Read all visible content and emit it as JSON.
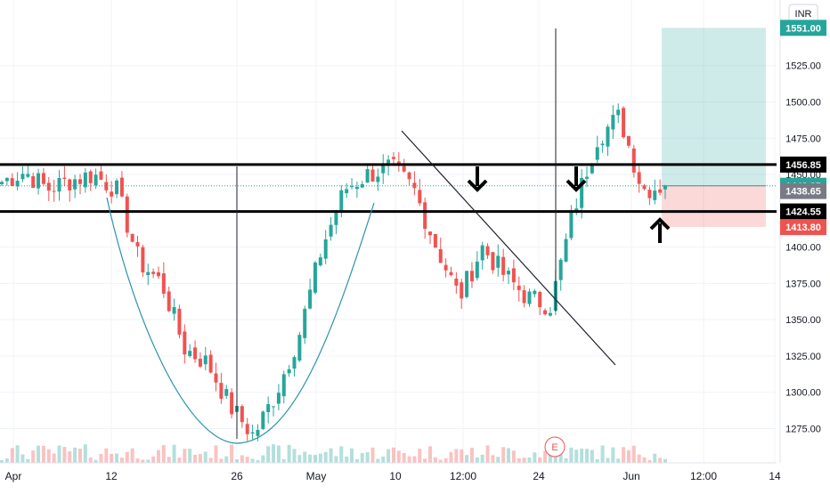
{
  "chart_data": {
    "type": "candlestick",
    "currency": "INR",
    "y_axis": {
      "side": "right",
      "ticks": [
        1275,
        1300,
        1325,
        1350,
        1375,
        1400,
        1425,
        1450,
        1475,
        1500,
        1525
      ],
      "tick_labels": [
        "1275.00",
        "1300.00",
        "1325.00",
        "1350.00",
        "1375.00",
        "1400.00",
        "1425.00",
        "1450.00",
        "1475.00",
        "1500.00",
        "1525.00"
      ],
      "range": [
        1250,
        1562
      ]
    },
    "x_axis": {
      "ticks": [
        "Apr",
        "12",
        "26",
        "May",
        "10",
        "12:00",
        "24",
        "Jun",
        "12:00",
        "14"
      ]
    },
    "price_labels": [
      {
        "value": 1551.0,
        "label": "1551.00",
        "color": "#26a69a"
      },
      {
        "value": 1456.85,
        "label": "1456.85",
        "color": "#000000"
      },
      {
        "value": 1442.25,
        "label": "1442.25",
        "color": "#26a69a"
      },
      {
        "value": 1438.65,
        "label": "1438.65",
        "color": "#787b86"
      },
      {
        "value": 1424.55,
        "label": "1424.55",
        "color": "#000000"
      },
      {
        "value": 1413.8,
        "label": "1413.80",
        "color": "#ef5350"
      }
    ],
    "horizontal_lines": [
      {
        "value": 1456.85,
        "role": "resistance"
      },
      {
        "value": 1424.55,
        "role": "support"
      }
    ],
    "current_price": 1442.25,
    "position": {
      "entry": 1442.25,
      "target": 1551.0,
      "stop": 1413.8,
      "type": "long"
    },
    "price_path": [
      {
        "d": "Apr",
        "c": 1445
      },
      {
        "d": "Apr 3",
        "c": 1452
      },
      {
        "d": "Apr 5",
        "c": 1440
      },
      {
        "d": "Apr 8",
        "c": 1446
      },
      {
        "d": "Apr 10",
        "c": 1450
      },
      {
        "d": "Apr 12",
        "c": 1440
      },
      {
        "d": "Apr 15",
        "c": 1390
      },
      {
        "d": "Apr 17",
        "c": 1375
      },
      {
        "d": "Apr 19",
        "c": 1330
      },
      {
        "d": "Apr 22",
        "c": 1320
      },
      {
        "d": "Apr 24",
        "c": 1290
      },
      {
        "d": "Apr 26",
        "c": 1270
      },
      {
        "d": "Apr 29",
        "c": 1300
      },
      {
        "d": "May 1",
        "c": 1340
      },
      {
        "d": "May 3",
        "c": 1400
      },
      {
        "d": "May 6",
        "c": 1440
      },
      {
        "d": "May 8",
        "c": 1450
      },
      {
        "d": "May 10",
        "c": 1455
      },
      {
        "d": "May 13",
        "c": 1440
      },
      {
        "d": "May 15",
        "c": 1400
      },
      {
        "d": "May 17",
        "c": 1365
      },
      {
        "d": "May 20",
        "c": 1400
      },
      {
        "d": "May 22",
        "c": 1380
      },
      {
        "d": "May 24",
        "c": 1365
      },
      {
        "d": "May 27",
        "c": 1360
      },
      {
        "d": "May 29",
        "c": 1425
      },
      {
        "d": "May 31",
        "c": 1475
      },
      {
        "d": "Jun 3",
        "c": 1490
      },
      {
        "d": "Jun 5",
        "c": 1440
      },
      {
        "d": "Jun 7",
        "c": 1442.25
      }
    ],
    "event_marker": "E"
  }
}
